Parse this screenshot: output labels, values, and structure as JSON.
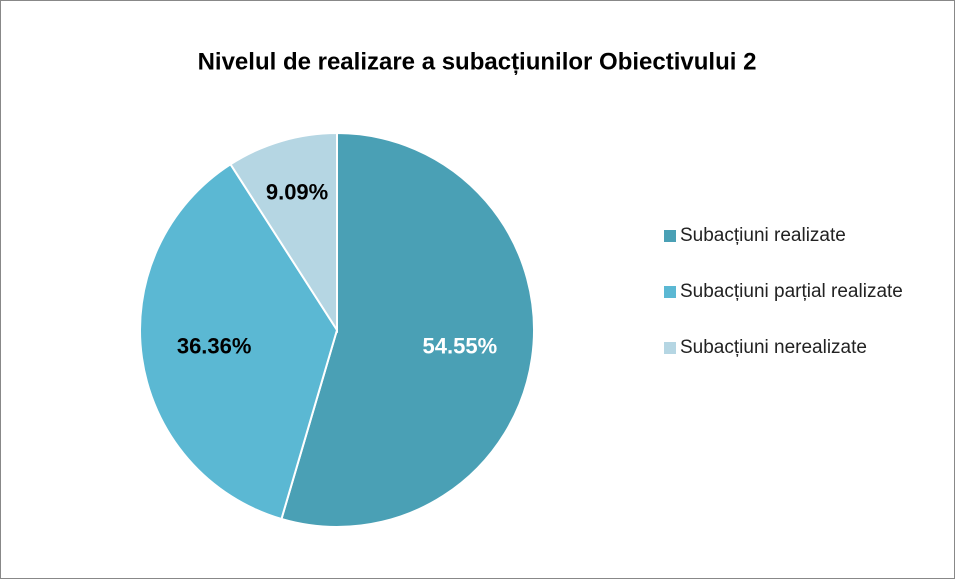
{
  "chart_data": {
    "type": "pie",
    "title": "Nivelul de realizare a subacțiunilor Obiectivului 2",
    "categories": [
      "Subacțiuni realizate",
      "Subacțiuni parțial realizate",
      "Subacțiuni nerealizate"
    ],
    "values": [
      54.55,
      36.36,
      9.09
    ],
    "value_labels": [
      "54.55%",
      "36.36%",
      "9.09%"
    ],
    "colors": [
      "#4aa0b5",
      "#5bb8d3",
      "#b5d6e3"
    ],
    "label_colors": [
      "#ffffff",
      "#000000",
      "#000000"
    ],
    "legend": "right"
  }
}
